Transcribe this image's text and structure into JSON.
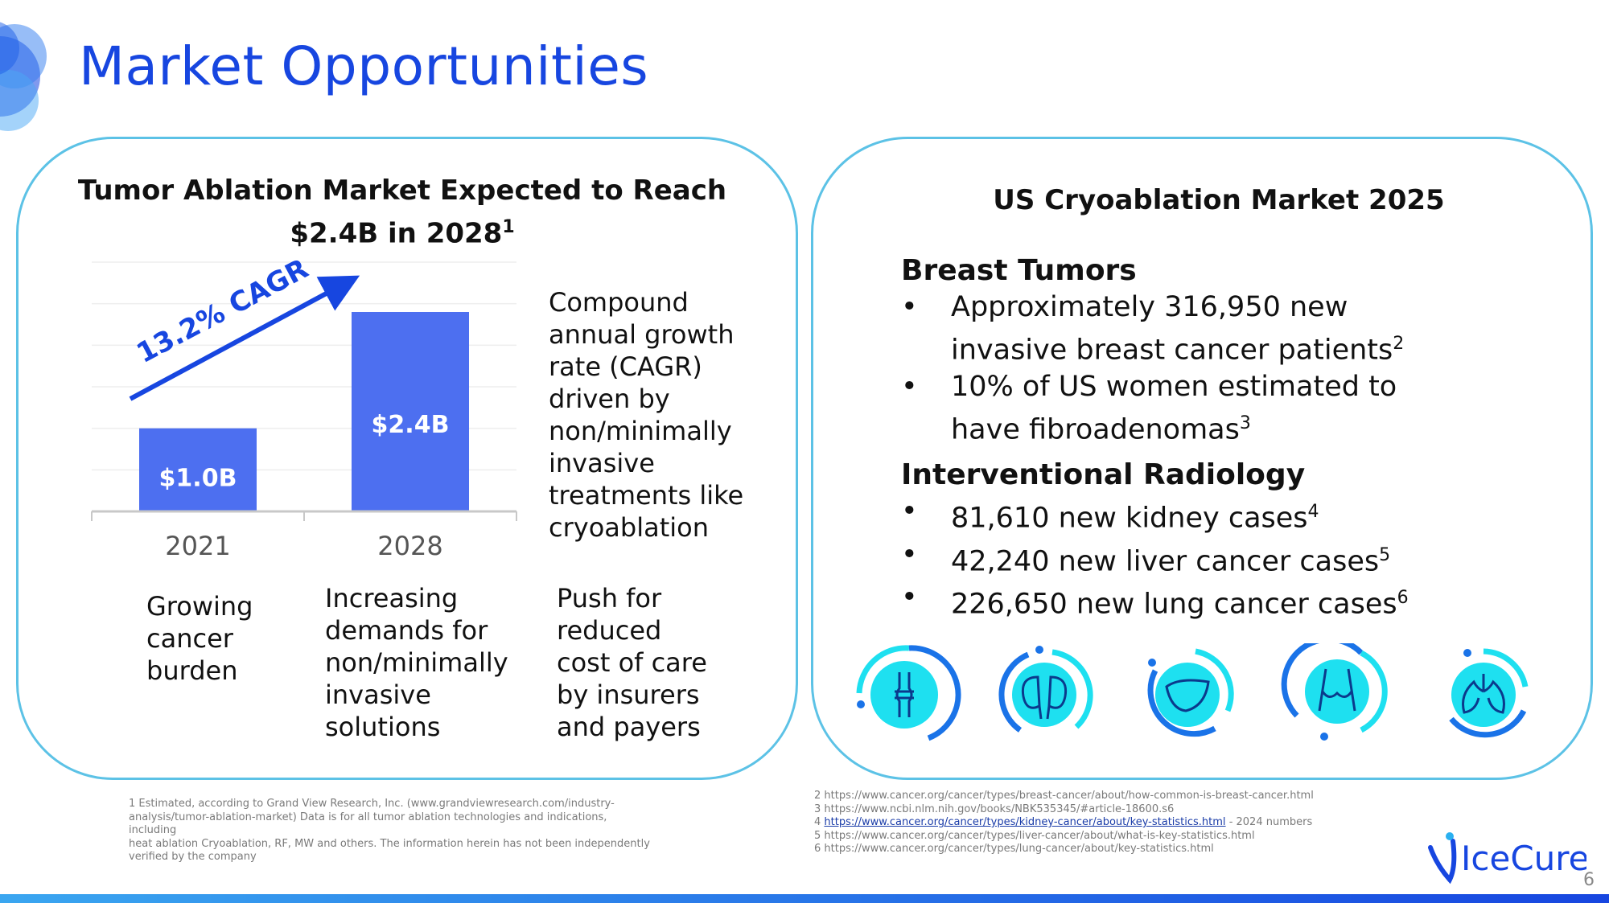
{
  "page_title": "Market Opportunities",
  "left_panel": {
    "title_line1": "Tumor Ablation Market Expected to Reach",
    "title_line2": "$2.4B in 2028",
    "title_sup": "1",
    "cagr_label": "13.2% CAGR",
    "cagr_description": [
      "Compound",
      "annual growth",
      "rate (CAGR)",
      "driven by",
      "non/minimally",
      "invasive",
      "treatments like",
      "cryoablation"
    ],
    "drivers": [
      [
        "Growing",
        "cancer",
        "burden"
      ],
      [
        "Increasing",
        "demands for",
        "non/minimally",
        "invasive",
        "solutions"
      ],
      [
        "Push for",
        "reduced",
        "cost of care",
        "by insurers",
        "and payers"
      ]
    ]
  },
  "chart_data": {
    "type": "bar",
    "categories": [
      "2021",
      "2028"
    ],
    "values": [
      1.0,
      2.4
    ],
    "data_labels": [
      "$1.0B",
      "$2.4B"
    ],
    "ylim": [
      0,
      3.0
    ],
    "grid": true,
    "bar_color": "#4d6ff0"
  },
  "right_panel": {
    "title": "US Cryoablation Market 2025",
    "sections": [
      {
        "heading": "Breast Tumors",
        "bullets": [
          {
            "lines": [
              "Approximately 316,950 new",
              "invasive breast cancer patients"
            ],
            "sup": "2"
          },
          {
            "lines": [
              "10% of US women estimated to",
              "have fibroadenomas"
            ],
            "sup": "3"
          }
        ]
      },
      {
        "heading": "Interventional Radiology",
        "bullets": [
          {
            "lines": [
              "81,610 new kidney cases"
            ],
            "sup": "4"
          },
          {
            "lines": [
              "42,240 new liver cancer cases"
            ],
            "sup": "5"
          },
          {
            "lines": [
              "226,650 new lung cancer cases"
            ],
            "sup": "6"
          }
        ]
      }
    ],
    "icons": [
      "bone-joint-icon",
      "kidney-icon",
      "liver-icon",
      "breast-torso-icon",
      "lung-icon"
    ]
  },
  "footnotes_left": [
    "1 Estimated, according to Grand View Research, Inc. (www.grandviewresearch.com/industry-",
    "analysis/tumor-ablation-market) Data is for all tumor ablation technologies and indications, including",
    "heat ablation Cryoablation, RF, MW and others. The information herein has not been independently",
    "verified by the company"
  ],
  "footnotes_right": {
    "line2": "2 https://www.cancer.org/cancer/types/breast-cancer/about/how-common-is-breast-cancer.html",
    "line3": "3 https://www.ncbi.nlm.nih.gov/books/NBK535345/#article-18600.s6",
    "line4_prefix": "4 ",
    "line4_link": "https://www.cancer.org/cancer/types/kidney-cancer/about/key-statistics.html",
    "line4_suffix": " - 2024 numbers",
    "line5": "5  https://www.cancer.org/cancer/types/liver-cancer/about/what-is-key-statistics.html",
    "line6": "6 https://www.cancer.org/cancer/types/lung-cancer/about/key-statistics.html"
  },
  "brand": "IceCure",
  "page_number": "6",
  "colors": {
    "title_blue": "#1746e0",
    "panel_border": "#5cc2e6",
    "icon_cyan": "#1ee0f0",
    "icon_blue": "#1a73e8"
  }
}
